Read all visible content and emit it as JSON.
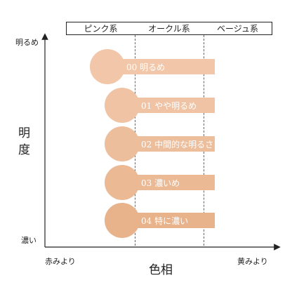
{
  "header": {
    "col1": "ピンク系",
    "col2": "オークル系",
    "col3": "ベージュ系"
  },
  "axes": {
    "y_top": "明るめ",
    "y_bottom": "濃い",
    "y_title": "明度",
    "x_left": "赤みより",
    "x_right": "黄みより",
    "x_title": "色相"
  },
  "shades": [
    {
      "label": "00 明るめ",
      "color": "#F2C6A8"
    },
    {
      "label": "01 やや明るめ",
      "color": "#EFC3A4"
    },
    {
      "label": "02 中間的な明るさ",
      "color": "#EDBE9C"
    },
    {
      "label": "03 濃いめ",
      "color": "#EBBA95"
    },
    {
      "label": "04 特に濃い",
      "color": "#E8B28A"
    }
  ]
}
